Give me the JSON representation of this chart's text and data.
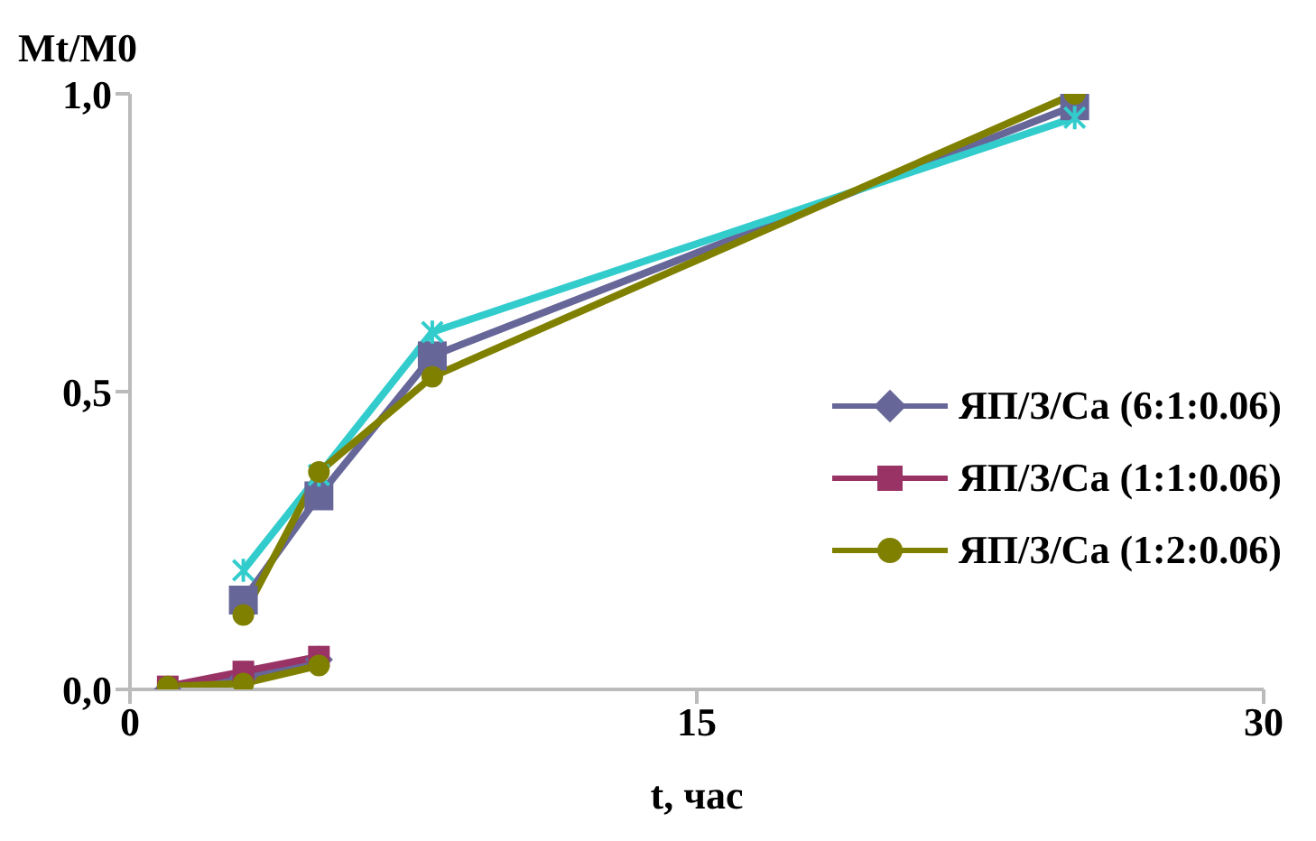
{
  "chart_data": {
    "type": "line",
    "xlabel": "t, час",
    "ylabel": "Mt/M0",
    "xlim": [
      0,
      30
    ],
    "xticks": [
      0,
      15,
      30
    ],
    "ylim": [
      0,
      1
    ],
    "yticks": [
      {
        "value": 0,
        "label": "0,0"
      },
      {
        "value": 0.5,
        "label": "0,5"
      },
      {
        "value": 1,
        "label": "1,0"
      }
    ],
    "grid": false,
    "legend": "right",
    "line_style": "solid",
    "series": [
      {
        "name": "ЯП/З/Са (6:1:0.06)",
        "color": "#666699",
        "marker": "diamond",
        "x": [
          1,
          3,
          5
        ],
        "values": [
          0,
          0.02,
          0.05
        ]
      },
      {
        "name": "ЯП/З/Са (1:1:0.06)",
        "color": "#993366",
        "marker": "square",
        "x": [
          1,
          3,
          5
        ],
        "values": [
          0.005,
          0.03,
          0.055
        ]
      },
      {
        "name": "ЯП/З/Са (1:2:0.06)",
        "color": "#808000",
        "marker": "circle",
        "x": [
          1,
          3,
          5
        ],
        "values": [
          0.005,
          0.01,
          0.04
        ]
      },
      {
        "color": "#666699",
        "marker": "square",
        "x": [
          3,
          5,
          8,
          25
        ],
        "values": [
          0.15,
          0.325,
          0.56,
          0.98
        ]
      },
      {
        "color": "#33cccc",
        "marker": "cross",
        "x": [
          3,
          5,
          8,
          25
        ],
        "values": [
          0.2,
          0.36,
          0.6,
          0.96
        ]
      },
      {
        "color": "#808000",
        "marker": "circle",
        "x": [
          3,
          5,
          8,
          25
        ],
        "values": [
          0.125,
          0.365,
          0.525,
          1.0
        ]
      }
    ]
  }
}
